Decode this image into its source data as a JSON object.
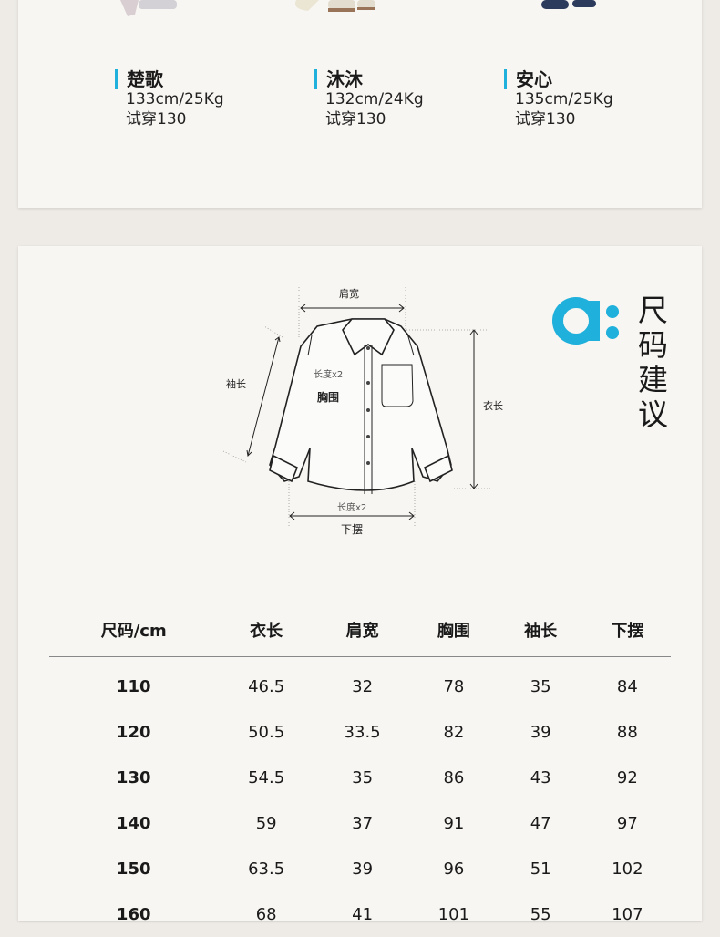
{
  "models": [
    {
      "name": "楚歌",
      "body": "133cm/25Kg",
      "trial": "试穿130"
    },
    {
      "name": "沐沐",
      "body": "132cm/24Kg",
      "trial": "试穿130"
    },
    {
      "name": "安心",
      "body": "135cm/25Kg",
      "trial": "试穿130"
    }
  ],
  "section": {
    "title_chars": [
      "尺",
      "码",
      "建",
      "议"
    ],
    "brand_logo": "a:",
    "accent": "#1fb0dc"
  },
  "diagram": {
    "shoulder": "肩宽",
    "sleeve": "袖长",
    "chest_note": "长度x2",
    "chest": "胸围",
    "length": "衣长",
    "hem_note": "长度x2",
    "hem": "下摆"
  },
  "table": {
    "headers": [
      "尺码/cm",
      "衣长",
      "肩宽",
      "胸围",
      "袖长",
      "下摆"
    ],
    "rows": [
      [
        "110",
        "46.5",
        "32",
        "78",
        "35",
        "84"
      ],
      [
        "120",
        "50.5",
        "33.5",
        "82",
        "39",
        "88"
      ],
      [
        "130",
        "54.5",
        "35",
        "86",
        "43",
        "92"
      ],
      [
        "140",
        "59",
        "37",
        "91",
        "47",
        "97"
      ],
      [
        "150",
        "63.5",
        "39",
        "96",
        "51",
        "102"
      ],
      [
        "160",
        "68",
        "41",
        "101",
        "55",
        "107"
      ]
    ]
  }
}
